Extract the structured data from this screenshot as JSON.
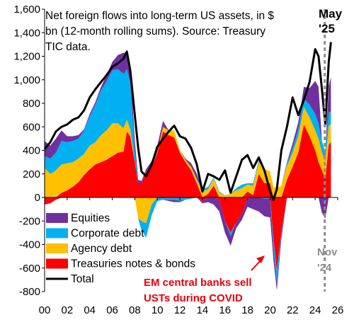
{
  "chart_data": {
    "type": "area",
    "title_lines": [
      "Net foreign flows into long-term US assets, in $",
      "bn (12-month rolling sums). Source:  Treasury",
      "TIC data."
    ],
    "xlabel": "",
    "ylabel": "",
    "xlim": [
      2000,
      2026
    ],
    "ylim": [
      -800,
      1600
    ],
    "x_ticks": [
      "00",
      "02",
      "04",
      "06",
      "08",
      "10",
      "12",
      "14",
      "16",
      "18",
      "20",
      "22",
      "24",
      "26"
    ],
    "y_ticks": [
      "-800",
      "-600",
      "-400",
      "-200",
      "0",
      "200",
      "400",
      "600",
      "800",
      "1,000",
      "1,200",
      "1,400",
      "1,600"
    ],
    "grid": false,
    "legend_position": "lower-left",
    "colors": {
      "Equities": "#7030a0",
      "Corporate debt": "#00b0f0",
      "Agency debt": "#ffc000",
      "Treasuries notes & bonds": "#ff0000",
      "Total": "#000000",
      "vline": "#8c8c8c"
    },
    "x": [
      2000.0,
      2000.5,
      2001.0,
      2001.5,
      2002.0,
      2002.5,
      2003.0,
      2003.5,
      2004.0,
      2004.5,
      2005.0,
      2005.5,
      2006.0,
      2006.5,
      2007.0,
      2007.3,
      2007.6,
      2008.0,
      2008.3,
      2008.6,
      2009.0,
      2009.5,
      2010.0,
      2010.5,
      2011.0,
      2011.5,
      2012.0,
      2012.5,
      2013.0,
      2013.5,
      2014.0,
      2014.5,
      2015.0,
      2015.5,
      2016.0,
      2016.5,
      2017.0,
      2017.5,
      2018.0,
      2018.5,
      2019.0,
      2019.5,
      2020.0,
      2020.3,
      2020.6,
      2021.0,
      2021.5,
      2022.0,
      2022.5,
      2023.0,
      2023.5,
      2024.0,
      2024.3,
      2024.6,
      2024.9,
      2025.2,
      2025.4
    ],
    "series": [
      {
        "name": "Treasuries notes & bonds",
        "values": [
          -60,
          -50,
          -20,
          40,
          60,
          90,
          130,
          190,
          240,
          280,
          300,
          320,
          350,
          380,
          390,
          560,
          520,
          300,
          120,
          120,
          220,
          260,
          380,
          560,
          530,
          510,
          380,
          300,
          230,
          120,
          -30,
          30,
          100,
          -20,
          -200,
          -300,
          -210,
          -140,
          50,
          20,
          200,
          120,
          120,
          -350,
          -620,
          -300,
          150,
          260,
          380,
          620,
          520,
          400,
          300,
          230,
          160,
          450,
          470
        ]
      },
      {
        "name": "Agency debt",
        "values": [
          250,
          200,
          230,
          240,
          230,
          210,
          200,
          180,
          200,
          190,
          230,
          250,
          280,
          250,
          200,
          100,
          60,
          0,
          -180,
          -200,
          -220,
          -60,
          10,
          40,
          40,
          60,
          20,
          20,
          30,
          30,
          50,
          40,
          60,
          40,
          20,
          30,
          60,
          80,
          60,
          80,
          100,
          120,
          100,
          90,
          80,
          100,
          120,
          120,
          140,
          150,
          160,
          170,
          200,
          150,
          150,
          160,
          150
        ]
      },
      {
        "name": "Corporate debt",
        "values": [
          100,
          130,
          150,
          200,
          180,
          180,
          170,
          200,
          250,
          320,
          380,
          420,
          450,
          460,
          460,
          430,
          400,
          100,
          0,
          -80,
          -120,
          -90,
          -30,
          -20,
          -20,
          -20,
          -30,
          -20,
          -10,
          10,
          20,
          20,
          10,
          10,
          0,
          -30,
          20,
          30,
          10,
          20,
          20,
          -10,
          -10,
          -80,
          -110,
          -30,
          20,
          40,
          60,
          70,
          110,
          140,
          130,
          100,
          80,
          120,
          100
        ]
      },
      {
        "name": "Equities",
        "values": [
          130,
          110,
          120,
          90,
          50,
          40,
          30,
          10,
          20,
          20,
          30,
          50,
          70,
          120,
          180,
          140,
          140,
          90,
          30,
          20,
          20,
          50,
          50,
          50,
          -10,
          -20,
          -10,
          10,
          30,
          40,
          -20,
          -40,
          -60,
          -100,
          -100,
          -80,
          -50,
          -50,
          -80,
          -100,
          -120,
          -150,
          -160,
          -100,
          -60,
          -30,
          10,
          40,
          60,
          100,
          140,
          280,
          310,
          -130,
          -180,
          220,
          300
        ]
      },
      {
        "name": "Total",
        "values": [
          420,
          390,
          480,
          570,
          520,
          520,
          530,
          580,
          710,
          810,
          940,
          1040,
          1150,
          1210,
          1230,
          1230,
          1120,
          490,
          -30,
          -140,
          -100,
          160,
          410,
          630,
          540,
          530,
          360,
          310,
          280,
          200,
          20,
          50,
          110,
          -70,
          -280,
          -380,
          -180,
          -80,
          40,
          20,
          200,
          80,
          50,
          -440,
          -710,
          -260,
          300,
          460,
          640,
          940,
          930,
          990,
          940,
          350,
          210,
          1150,
          1180
        ]
      }
    ],
    "total_line": [
      [
        2000.0,
        410
      ],
      [
        2000.5,
        470
      ],
      [
        2001.0,
        560
      ],
      [
        2001.5,
        600
      ],
      [
        2002.0,
        620
      ],
      [
        2002.5,
        660
      ],
      [
        2003.0,
        680
      ],
      [
        2003.5,
        740
      ],
      [
        2004.0,
        850
      ],
      [
        2004.5,
        920
      ],
      [
        2005.0,
        980
      ],
      [
        2005.5,
        1040
      ],
      [
        2006.0,
        1110
      ],
      [
        2006.5,
        1140
      ],
      [
        2007.0,
        1180
      ],
      [
        2007.3,
        1240
      ],
      [
        2007.6,
        1080
      ],
      [
        2008.0,
        700
      ],
      [
        2008.3,
        420
      ],
      [
        2008.6,
        220
      ],
      [
        2009.0,
        180
      ],
      [
        2009.5,
        280
      ],
      [
        2010.0,
        430
      ],
      [
        2010.5,
        500
      ],
      [
        2011.0,
        560
      ],
      [
        2011.5,
        610
      ],
      [
        2012.0,
        520
      ],
      [
        2012.5,
        500
      ],
      [
        2013.0,
        420
      ],
      [
        2013.5,
        280
      ],
      [
        2014.0,
        50
      ],
      [
        2014.5,
        200
      ],
      [
        2015.0,
        180
      ],
      [
        2015.5,
        150
      ],
      [
        2016.0,
        230
      ],
      [
        2016.5,
        40
      ],
      [
        2017.0,
        180
      ],
      [
        2017.5,
        320
      ],
      [
        2018.0,
        360
      ],
      [
        2018.5,
        250
      ],
      [
        2019.0,
        340
      ],
      [
        2019.5,
        230
      ],
      [
        2020.0,
        50
      ],
      [
        2020.3,
        -20
      ],
      [
        2020.6,
        70
      ],
      [
        2021.0,
        400
      ],
      [
        2021.5,
        600
      ],
      [
        2022.0,
        850
      ],
      [
        2022.5,
        700
      ],
      [
        2023.0,
        830
      ],
      [
        2023.5,
        980
      ],
      [
        2024.0,
        1260
      ],
      [
        2024.3,
        1200
      ],
      [
        2024.6,
        920
      ],
      [
        2024.9,
        620
      ],
      [
        2025.2,
        1150
      ],
      [
        2025.4,
        1320
      ]
    ],
    "vline_x": 2024.85,
    "legend": [
      "Equities",
      "Corporate debt",
      "Agency debt",
      "Treasuries notes & bonds",
      "Total"
    ],
    "annotations": {
      "covid_line1": "EM central banks sell",
      "covid_line2": "USTs during COVID",
      "nov_line1": "Nov",
      "nov_line2": "'24",
      "may_line1": "May",
      "may_line2": "'25"
    }
  }
}
